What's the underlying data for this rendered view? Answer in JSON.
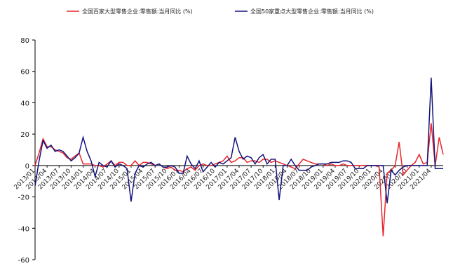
{
  "chart_data": {
    "type": "line",
    "categories": [
      "2013/01",
      null,
      null,
      "2013/04",
      null,
      null,
      "2013/07",
      null,
      null,
      "2013/10",
      null,
      null,
      "2014/01",
      null,
      null,
      "2014/04",
      null,
      null,
      "2014/07",
      null,
      null,
      "2014/10",
      null,
      null,
      "2015/01",
      null,
      null,
      "2015/04",
      null,
      null,
      "2015/07",
      null,
      null,
      "2015/10",
      null,
      null,
      "2016/01",
      null,
      null,
      "2016/04",
      null,
      null,
      "2016/07",
      null,
      null,
      "2016/10",
      null,
      null,
      "2017/01",
      null,
      null,
      "2017/04",
      null,
      null,
      "2017/07",
      null,
      null,
      "2017/10",
      null,
      null,
      "2018/01",
      null,
      null,
      "2018/04",
      null,
      null,
      "2018/07",
      null,
      null,
      "2018/10",
      null,
      null,
      "2019/01",
      null,
      null,
      "2019/04",
      null,
      null,
      "2019/07",
      null,
      null,
      "2019/10",
      null,
      null,
      "2020/01",
      null,
      null,
      "2020/04",
      null,
      null,
      "2020/07",
      null,
      null,
      "2020/10",
      null,
      null,
      "2021/01",
      null,
      null,
      "2021/04",
      null,
      null,
      null
    ],
    "series": [
      {
        "name": "全国百家大型零售企业:零售额:当月同比 (%)",
        "color": "#e8262b",
        "values": [
          0,
          8,
          17,
          12,
          12,
          10,
          9,
          8,
          5,
          4,
          6,
          8,
          1,
          1,
          1,
          0,
          0,
          -1,
          1,
          3,
          0,
          2,
          2,
          0,
          0,
          3,
          0,
          2,
          2,
          1,
          0,
          1,
          -1,
          -2,
          -1,
          -3,
          -3,
          -4,
          -2,
          -1,
          -3,
          0,
          1,
          0,
          0,
          1,
          2,
          3,
          6,
          2,
          3,
          5,
          5,
          2,
          3,
          3,
          2,
          4,
          4,
          2,
          3,
          2,
          1,
          0,
          -1,
          -2,
          1,
          4,
          3,
          2,
          1,
          1,
          1,
          0,
          1,
          0,
          0,
          1,
          0,
          0,
          0,
          0,
          0,
          0,
          0,
          0,
          -1,
          -45,
          -5,
          -3,
          0,
          15,
          -6,
          -3,
          0,
          2,
          7,
          1,
          2,
          27,
          0,
          18,
          7
        ]
      },
      {
        "name": "全国50家重点大型零售企业:零售额:当月同比 (%)",
        "color": "#13137a",
        "values": [
          -13,
          3,
          16,
          11,
          13,
          9,
          10,
          9,
          6,
          3,
          5,
          8,
          18,
          9,
          3,
          -7,
          2,
          0,
          -1,
          3,
          -1,
          1,
          0,
          -2,
          -23,
          -5,
          0,
          -1,
          1,
          2,
          0,
          1,
          -1,
          -1,
          0,
          -1,
          -5,
          -5,
          6,
          1,
          -2,
          3,
          -4,
          -1,
          2,
          -1,
          2,
          1,
          3,
          5,
          18,
          9,
          4,
          6,
          5,
          1,
          5,
          7,
          1,
          4,
          4,
          -22,
          0,
          0,
          4,
          0,
          -3,
          -3,
          -3,
          -1,
          0,
          1,
          1,
          1,
          2,
          2,
          2,
          3,
          3,
          2,
          -2,
          -2,
          -2,
          0,
          0,
          0,
          0,
          0,
          -24,
          -3,
          -6,
          -3,
          -1,
          0,
          0,
          0,
          0,
          0,
          0,
          56,
          -2,
          -2,
          -2
        ]
      }
    ],
    "ylim": [
      -60,
      80
    ],
    "yticks": [
      -60,
      -40,
      -20,
      0,
      20,
      40,
      60,
      80
    ]
  }
}
